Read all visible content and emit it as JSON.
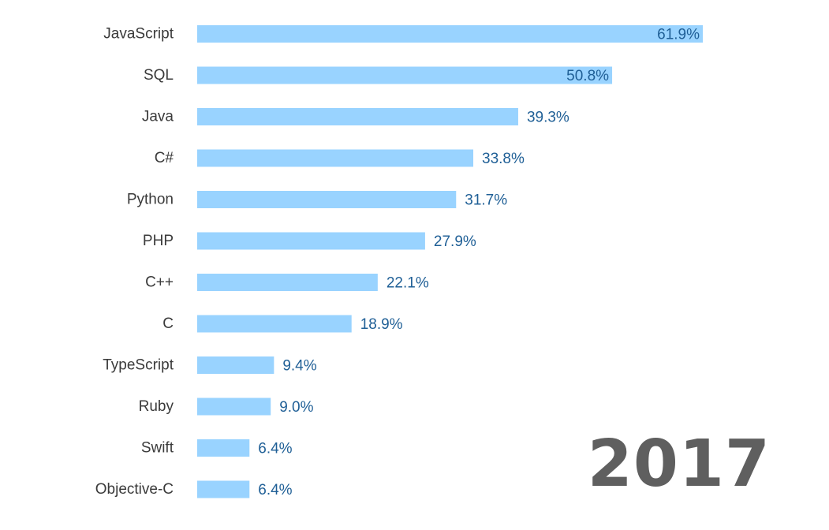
{
  "year_watermark": "2017",
  "colors": {
    "bar": "#99d3ff",
    "value_label": "#1f5f96",
    "category_label": "#3a3a3a",
    "year": "#5f5f5f"
  },
  "chart_data": {
    "type": "bar",
    "orientation": "horizontal",
    "title": "",
    "xlabel": "",
    "ylabel": "",
    "unit": "%",
    "xlim": [
      0,
      61.9
    ],
    "grid": false,
    "categories": [
      "JavaScript",
      "SQL",
      "Java",
      "C#",
      "Python",
      "PHP",
      "C++",
      "C",
      "TypeScript",
      "Ruby",
      "Swift",
      "Objective-C"
    ],
    "values": [
      61.9,
      50.8,
      39.3,
      33.8,
      31.7,
      27.9,
      22.1,
      18.9,
      9.4,
      9.0,
      6.4,
      6.4
    ],
    "value_labels": [
      "61.9%",
      "50.8%",
      "39.3%",
      "33.8%",
      "31.7%",
      "27.9%",
      "22.1%",
      "18.9%",
      "9.4%",
      "9.0%",
      "6.4%",
      "6.4%"
    ]
  }
}
